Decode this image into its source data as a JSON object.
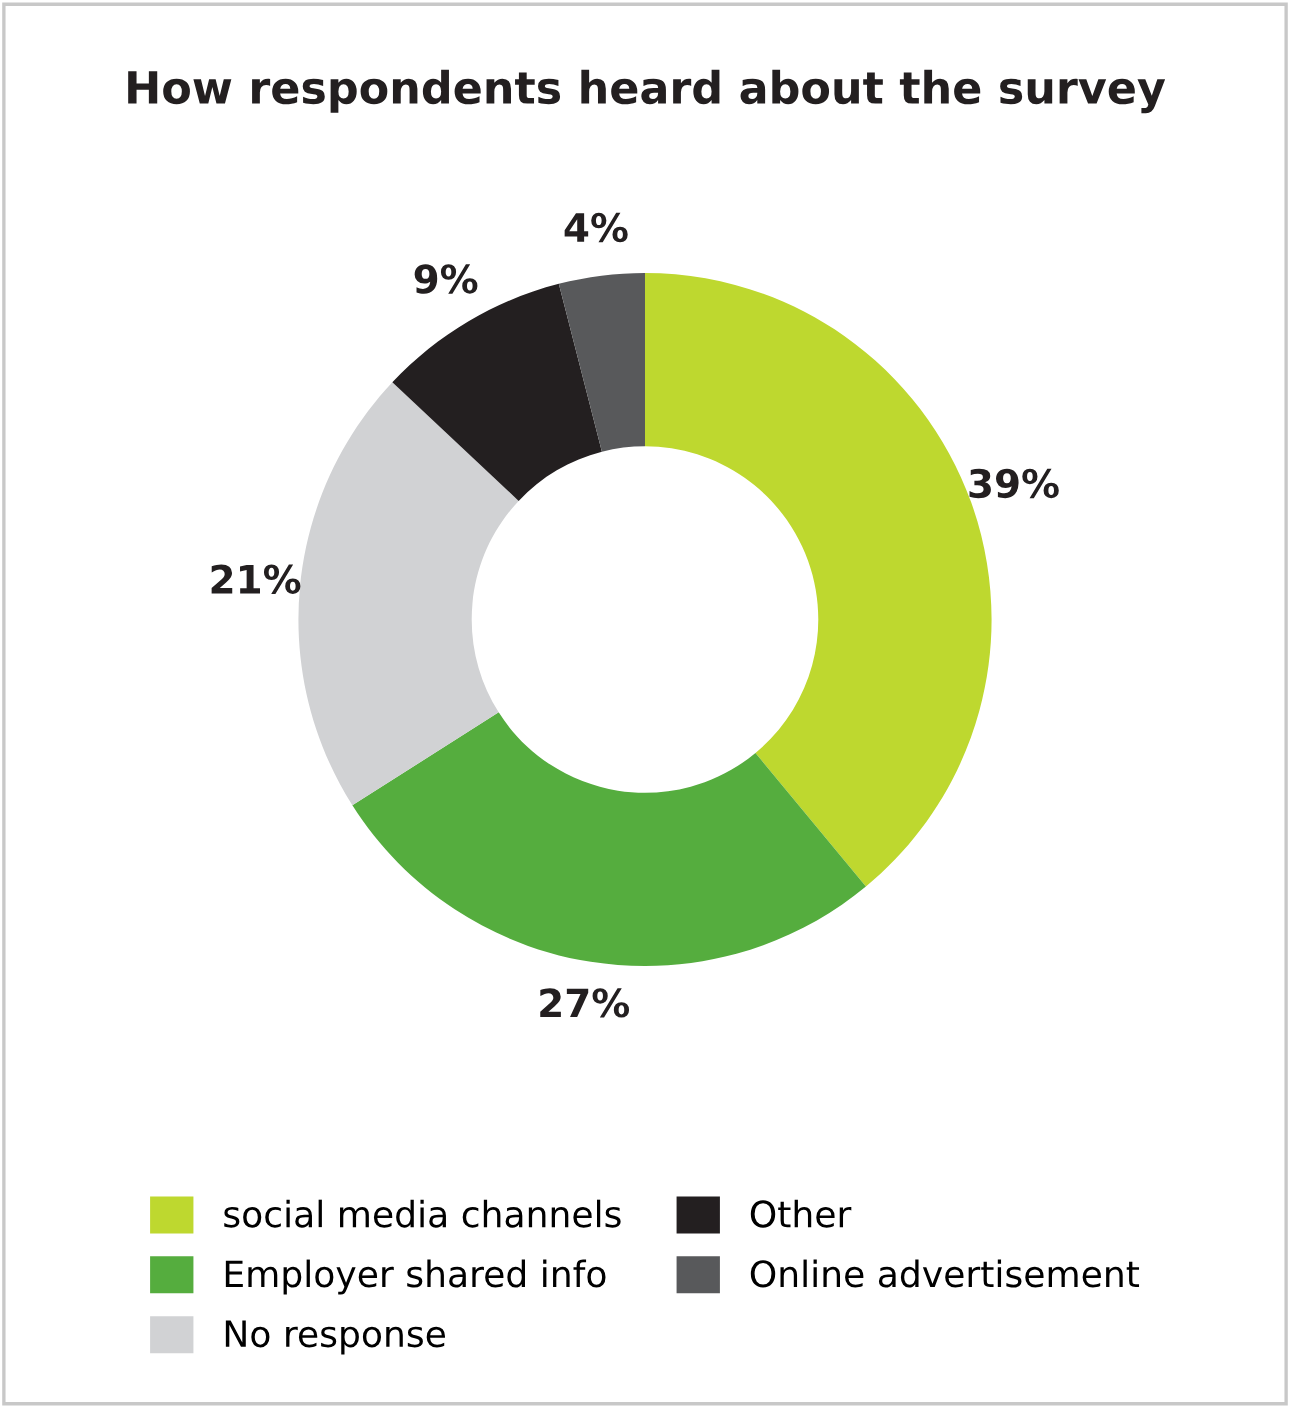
{
  "chart_data": {
    "type": "donut",
    "title": "How respondents heard about the survey",
    "categories": [
      "social media channels",
      "Employer shared info",
      "No response",
      "Other",
      "Online advertisement"
    ],
    "values": [
      39,
      27,
      21,
      9,
      4
    ],
    "colors": [
      "#bed82f",
      "#55ad3e",
      "#d1d2d4",
      "#231f20",
      "#58595b"
    ],
    "value_labels": [
      "39%",
      "27%",
      "21%",
      "9%",
      "4%"
    ],
    "legend": "bottom"
  }
}
